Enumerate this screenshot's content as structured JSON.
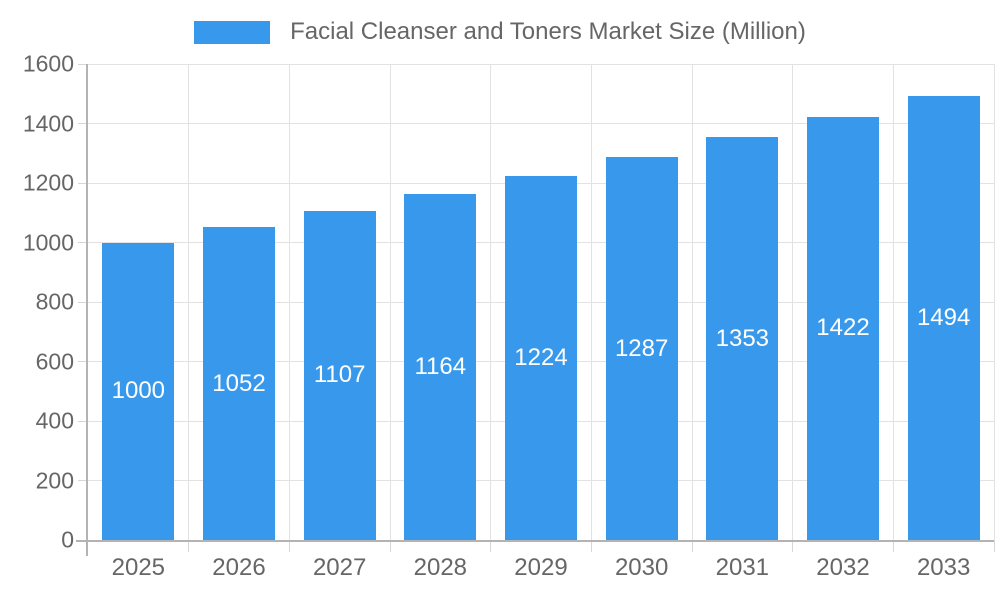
{
  "legend": {
    "label": "Facial Cleanser and Toners Market Size (Million)"
  },
  "chart_data": {
    "type": "bar",
    "title": "Facial Cleanser and Toners Market Size (Million)",
    "categories": [
      "2025",
      "2026",
      "2027",
      "2028",
      "2029",
      "2030",
      "2031",
      "2032",
      "2033"
    ],
    "series": [
      {
        "name": "Facial Cleanser and Toners Market Size (Million)",
        "values": [
          1000,
          1052,
          1107,
          1164,
          1224,
          1287,
          1353,
          1422,
          1494
        ]
      }
    ],
    "value_labels": [
      "1000",
      "1052",
      "1107",
      "1164",
      "1224",
      "1287",
      "1353",
      "1422",
      "1494"
    ],
    "value_label_position": "inside-center",
    "xlabel": "",
    "ylabel": "",
    "ylim": [
      0,
      1600
    ],
    "ytick_interval": 200,
    "yticks": [
      0,
      200,
      400,
      600,
      800,
      1000,
      1200,
      1400,
      1600
    ],
    "grid": true,
    "legend_position": "top-center",
    "colors": {
      "bar": "#3899EC",
      "value_label": "#FFFFFF",
      "axis_line": "#B3B3B3",
      "gridline": "#E2E2E2",
      "tick": "#D6D6D6",
      "tick_label": "#666666",
      "legend_text": "#666666",
      "background": "#FFFFFF"
    }
  }
}
